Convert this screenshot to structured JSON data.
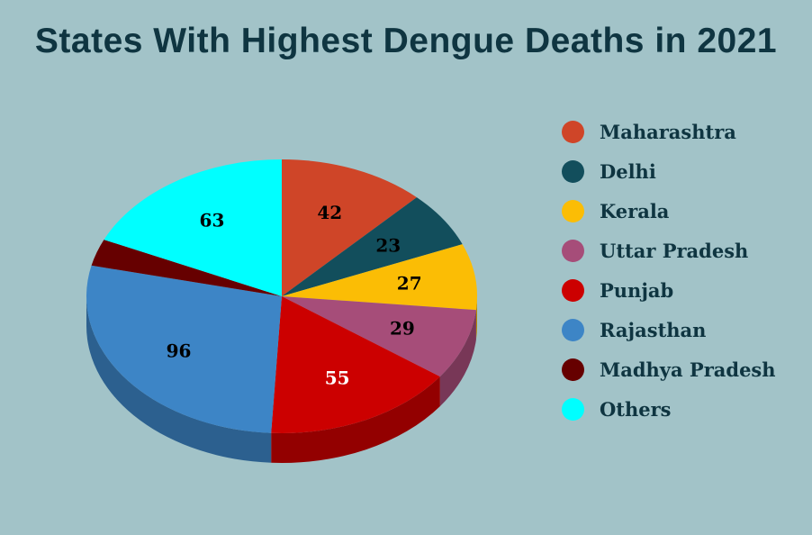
{
  "chart_data": {
    "type": "pie",
    "style": "3d",
    "title": "States With Highest Dengue Deaths in 2021",
    "categories": [
      "Maharashtra",
      "Delhi",
      "Kerala",
      "Uttar Pradesh",
      "Punjab",
      "Rajasthan",
      "Madhya Pradesh",
      "Others"
    ],
    "values": [
      42,
      23,
      27,
      29,
      55,
      96,
      11,
      63
    ],
    "data_labels": [
      "42",
      "23",
      "27",
      "29",
      "55",
      "96",
      "",
      "63"
    ],
    "colors": [
      "#cf4528",
      "#124e5c",
      "#fbbd05",
      "#a64d79",
      "#cc0000",
      "#3d85c6",
      "#660000",
      "#00ffff"
    ],
    "legend_position": "right"
  },
  "title": "States With Highest Dengue Deaths in 2021",
  "legend": [
    {
      "label": "Maharashtra",
      "color": "#cf4528"
    },
    {
      "label": "Delhi",
      "color": "#124e5c"
    },
    {
      "label": "Kerala",
      "color": "#fbbd05"
    },
    {
      "label": "Uttar Pradesh",
      "color": "#a64d79"
    },
    {
      "label": "Punjab",
      "color": "#cc0000"
    },
    {
      "label": "Rajasthan",
      "color": "#3d85c6"
    },
    {
      "label": "Madhya Pradesh",
      "color": "#660000"
    },
    {
      "label": "Others",
      "color": "#00ffff"
    }
  ]
}
